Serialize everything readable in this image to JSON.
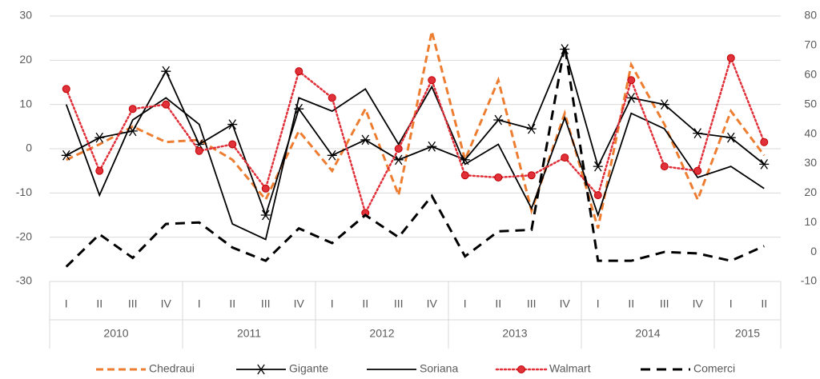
{
  "chart_data": {
    "type": "line",
    "categories": [
      "I",
      "II",
      "III",
      "IV",
      "I",
      "II",
      "III",
      "IV",
      "I",
      "II",
      "III",
      "IV",
      "I",
      "II",
      "III",
      "IV",
      "I",
      "II",
      "III",
      "IV",
      "I",
      "II"
    ],
    "groups": [
      {
        "label": "2010",
        "count": 4
      },
      {
        "label": "2011",
        "count": 4
      },
      {
        "label": "2012",
        "count": 4
      },
      {
        "label": "2013",
        "count": 4
      },
      {
        "label": "2014",
        "count": 4
      },
      {
        "label": "2015",
        "count": 2
      }
    ],
    "ylim": [
      -30,
      30
    ],
    "yticks": [
      -30,
      -20,
      -10,
      0,
      10,
      20,
      30
    ],
    "y2lim": [
      -10,
      80
    ],
    "y2ticks": [
      -10,
      0,
      10,
      20,
      30,
      40,
      50,
      60,
      70,
      80
    ],
    "grid": true,
    "legend": "bottom",
    "series": [
      {
        "name": "Chedraui",
        "color": "#ed7d31",
        "dash": "dashed",
        "marker": "none",
        "values": [
          -2.5,
          1,
          5,
          1.5,
          2,
          -2.5,
          -11.5,
          4,
          -5,
          9,
          -10.5,
          26.5,
          -2.5,
          15.5,
          -14,
          8,
          -18,
          19,
          5.5,
          -11.5,
          8.5,
          -1.5
        ]
      },
      {
        "name": "Gigante",
        "color": "#000000",
        "dash": "solid",
        "marker": "asterisk",
        "values": [
          -1.5,
          2.5,
          4,
          17.5,
          1,
          5.5,
          -15,
          9,
          -1.5,
          2,
          -2.5,
          0.5,
          -2.5,
          6.5,
          4.5,
          22.5,
          -4,
          11.5,
          10,
          3.5,
          2.5,
          -3.5
        ]
      },
      {
        "name": "Soriana",
        "color": "#000000",
        "dash": "solid",
        "marker": "none",
        "values": [
          10,
          -10.5,
          6.5,
          11.5,
          5.5,
          -17,
          -20.5,
          11.5,
          8.5,
          13.5,
          1,
          14,
          -3.5,
          1,
          -13.5,
          7,
          -15,
          8,
          4.5,
          -6.5,
          -4,
          -9
        ]
      },
      {
        "name": "Walmart",
        "color": "#e0303a",
        "dash": "dotted",
        "marker": "circle",
        "values": [
          13.5,
          -5,
          9,
          10,
          -0.5,
          1,
          -9,
          17.5,
          11.5,
          -14.5,
          0,
          15.5,
          -6,
          -6.5,
          -6,
          -2,
          -10.5,
          15.5,
          -4,
          -5,
          20.5,
          1.5
        ]
      },
      {
        "name": "Comerci",
        "color": "#000000",
        "dash": "longdash",
        "marker": "none",
        "axis": "y2",
        "values": [
          -5,
          6,
          -2,
          9.5,
          10,
          1.5,
          -3,
          8,
          3,
          12.5,
          5,
          19,
          -1.5,
          7,
          7.5,
          70,
          -3,
          -3,
          0,
          -0.5,
          -3,
          2
        ]
      }
    ]
  }
}
